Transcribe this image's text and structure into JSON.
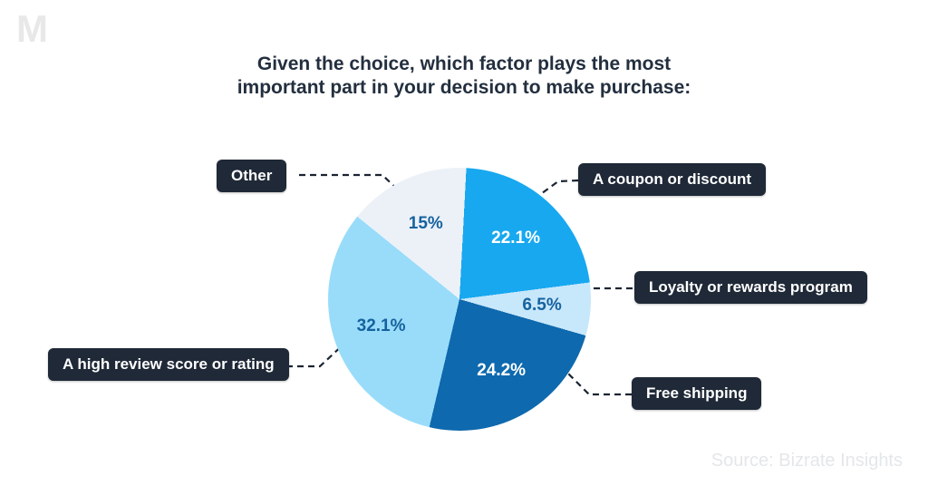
{
  "page": {
    "watermark": "M",
    "background_color": "#ffffff",
    "source_note": "Source: Bizrate Insights"
  },
  "title": {
    "line1": "Given the choice, which factor plays the most",
    "line2": "important part in your decision to make purchase:",
    "color": "#232f3f"
  },
  "colors": {
    "callout_box_bg": "#1f2937",
    "callout_text": "#ffffff",
    "connector_dash": "#1b2433",
    "percent_on_light": "#15629e",
    "percent_on_dark": "#ffffff"
  },
  "chart_data": {
    "type": "pie",
    "title": "Given the choice, which factor plays the most important part in your decision to make purchase:",
    "legend_position": "callout-labels-around-pie",
    "start_angle_deg": 3,
    "direction": "clockwise-from-top",
    "label_radius_factor": 0.63,
    "slices": [
      {
        "label": "A coupon or discount",
        "value": 22.1,
        "display": "22.1%",
        "color": "#17a8f0",
        "label_color": "#ffffff"
      },
      {
        "label": "Loyalty or rewards program",
        "value": 6.5,
        "display": "6.5%",
        "color": "#c7e7fb",
        "label_color": "#15629e"
      },
      {
        "label": "Free shipping",
        "value": 24.2,
        "display": "24.2%",
        "color": "#0e69ae",
        "label_color": "#ffffff"
      },
      {
        "label": "A high review score or rating",
        "value": 32.1,
        "display": "32.1%",
        "color": "#99dcfa",
        "label_color": "#15629e"
      },
      {
        "label": "Other",
        "value": 15,
        "display": "15%",
        "color": "#ecf1f8",
        "label_color": "#15629e"
      }
    ],
    "source": "Source: Bizrate Insights"
  }
}
